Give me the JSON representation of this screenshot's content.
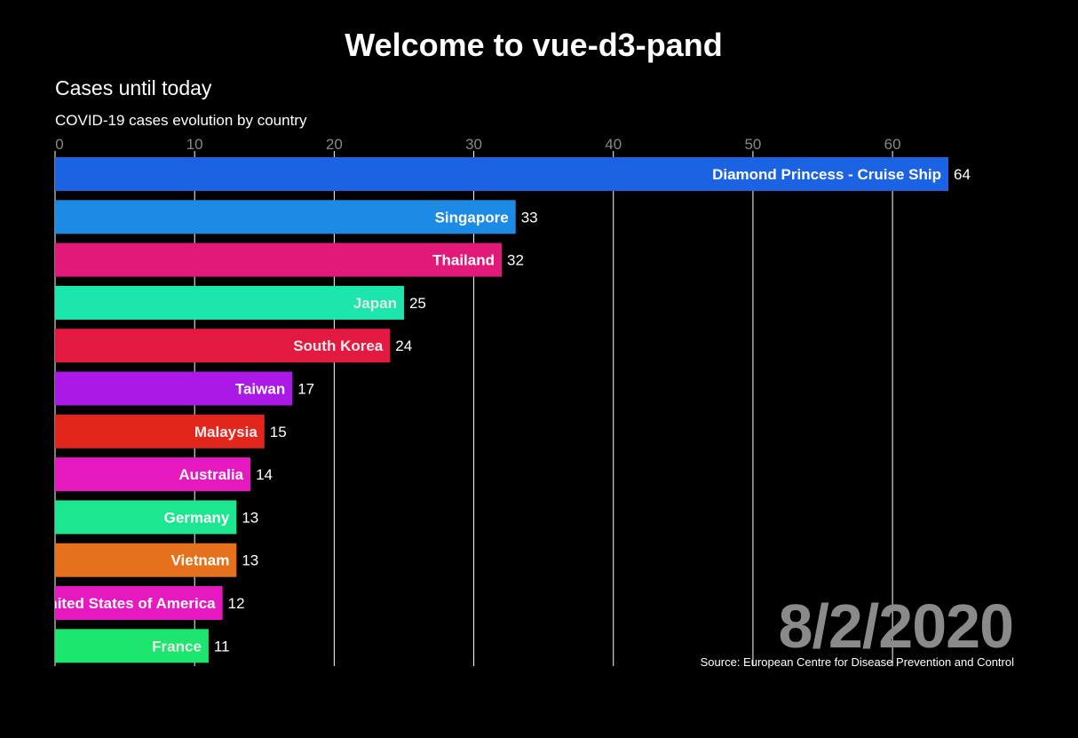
{
  "page": {
    "title": "Welcome to vue-d3-pand"
  },
  "chart_data": {
    "type": "bar",
    "orientation": "horizontal",
    "title": "Cases until today",
    "subtitle": "COVID-19 cases evolution by country",
    "date": "8/2/2020",
    "source": "Source: European Centre for Disease Prevention and Control",
    "xlim": [
      0,
      64
    ],
    "x_ticks": [
      0,
      10,
      20,
      30,
      40,
      50,
      60
    ],
    "grid": true,
    "grid_color": "#ffffff",
    "tick_color": "#888888",
    "background": "#000000",
    "bars": [
      {
        "label": "Diamond Princess - Cruise Ship",
        "value": 64,
        "color": "#1c63e3",
        "label_color": "#ffffff"
      },
      {
        "label": "Singapore",
        "value": 33,
        "color": "#1d8ae6",
        "label_color": "#ffffff"
      },
      {
        "label": "Thailand",
        "value": 32,
        "color": "#e3197a",
        "label_color": "#ffffff"
      },
      {
        "label": "Japan",
        "value": 25,
        "color": "#1de6ac",
        "label_color": "#dfe6e3"
      },
      {
        "label": "South Korea",
        "value": 24,
        "color": "#e31942",
        "label_color": "#ececec"
      },
      {
        "label": "Taiwan",
        "value": 17,
        "color": "#ab19e6",
        "label_color": "#ffffff"
      },
      {
        "label": "Malaysia",
        "value": 15,
        "color": "#e3261c",
        "label_color": "#ececec"
      },
      {
        "label": "Australia",
        "value": 14,
        "color": "#e619c1",
        "label_color": "#ffffff"
      },
      {
        "label": "Germany",
        "value": 13,
        "color": "#1de690",
        "label_color": "#ffffff"
      },
      {
        "label": "Vietnam",
        "value": 13,
        "color": "#e6711d",
        "label_color": "#ffffff"
      },
      {
        "label": "United States of America",
        "value": 12,
        "color": "#e619c0",
        "label_color": "#ffffff"
      },
      {
        "label": "France",
        "value": 11,
        "color": "#1de66e",
        "label_color": "#ececec"
      }
    ]
  }
}
